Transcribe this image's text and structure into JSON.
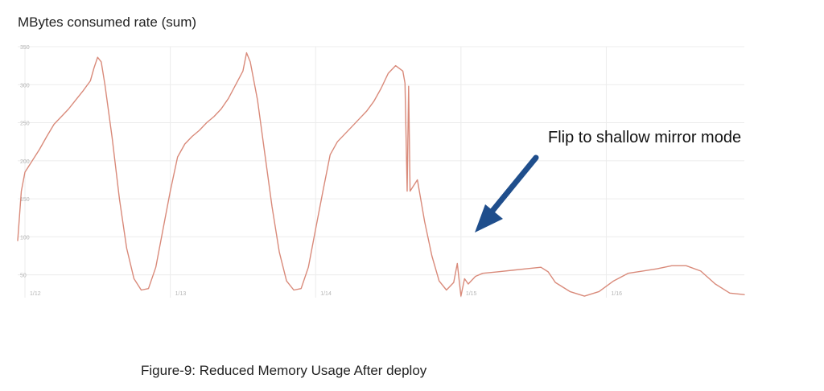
{
  "title": "MBytes consumed rate (sum)",
  "annotation": "Flip to shallow mirror mode",
  "caption": "Figure-9: Reduced Memory Usage After deploy",
  "colors": {
    "series": "#d98a7a",
    "arrow": "#1f4e8c",
    "grid": "#ececec"
  },
  "chart_data": {
    "type": "line",
    "ylim": [
      20,
      350
    ],
    "xlim": [
      0,
      100
    ],
    "y_ticks": [
      50,
      100,
      150,
      200,
      250,
      300,
      350
    ],
    "x_ticks": [
      {
        "x": 1,
        "label": "1/12"
      },
      {
        "x": 21,
        "label": "1/13"
      },
      {
        "x": 41,
        "label": "1/14"
      },
      {
        "x": 61,
        "label": "1/15"
      },
      {
        "x": 81,
        "label": "1/16"
      }
    ],
    "grid": true,
    "series": [
      {
        "values": [
          [
            0,
            95
          ],
          [
            0.5,
            160
          ],
          [
            1,
            185
          ],
          [
            2,
            200
          ],
          [
            3,
            215
          ],
          [
            4,
            232
          ],
          [
            5,
            248
          ],
          [
            6,
            258
          ],
          [
            7,
            268
          ],
          [
            8,
            280
          ],
          [
            9,
            292
          ],
          [
            10,
            305
          ],
          [
            10.5,
            322
          ],
          [
            11,
            336
          ],
          [
            11.5,
            330
          ],
          [
            12,
            300
          ],
          [
            13,
            230
          ],
          [
            14,
            150
          ],
          [
            15,
            85
          ],
          [
            16,
            45
          ],
          [
            17,
            30
          ],
          [
            18,
            32
          ],
          [
            19,
            60
          ],
          [
            20,
            110
          ],
          [
            21,
            160
          ],
          [
            22,
            205
          ],
          [
            23,
            222
          ],
          [
            24,
            232
          ],
          [
            25,
            240
          ],
          [
            26,
            250
          ],
          [
            27,
            258
          ],
          [
            28,
            268
          ],
          [
            29,
            282
          ],
          [
            30,
            300
          ],
          [
            31,
            318
          ],
          [
            31.5,
            342
          ],
          [
            32,
            330
          ],
          [
            33,
            280
          ],
          [
            34,
            210
          ],
          [
            35,
            140
          ],
          [
            36,
            80
          ],
          [
            37,
            42
          ],
          [
            38,
            30
          ],
          [
            39,
            32
          ],
          [
            40,
            60
          ],
          [
            41,
            110
          ],
          [
            42,
            160
          ],
          [
            43,
            208
          ],
          [
            44,
            225
          ],
          [
            45,
            235
          ],
          [
            46,
            245
          ],
          [
            47,
            255
          ],
          [
            48,
            265
          ],
          [
            49,
            278
          ],
          [
            50,
            295
          ],
          [
            51,
            315
          ],
          [
            52,
            325
          ],
          [
            53,
            318
          ],
          [
            53.3,
            302
          ],
          [
            53.6,
            160
          ],
          [
            53.8,
            298
          ],
          [
            54,
            160
          ],
          [
            55,
            175
          ],
          [
            56,
            120
          ],
          [
            57,
            75
          ],
          [
            58,
            42
          ],
          [
            59,
            30
          ],
          [
            60,
            40
          ],
          [
            60.5,
            65
          ],
          [
            61,
            22
          ],
          [
            61.5,
            45
          ],
          [
            62,
            38
          ],
          [
            63,
            48
          ],
          [
            64,
            52
          ],
          [
            66,
            54
          ],
          [
            68,
            56
          ],
          [
            70,
            58
          ],
          [
            72,
            60
          ],
          [
            73,
            54
          ],
          [
            74,
            40
          ],
          [
            76,
            28
          ],
          [
            78,
            22
          ],
          [
            80,
            28
          ],
          [
            82,
            42
          ],
          [
            84,
            52
          ],
          [
            86,
            55
          ],
          [
            88,
            58
          ],
          [
            90,
            62
          ],
          [
            92,
            62
          ],
          [
            94,
            55
          ],
          [
            96,
            38
          ],
          [
            98,
            26
          ],
          [
            100,
            24
          ]
        ]
      }
    ]
  }
}
